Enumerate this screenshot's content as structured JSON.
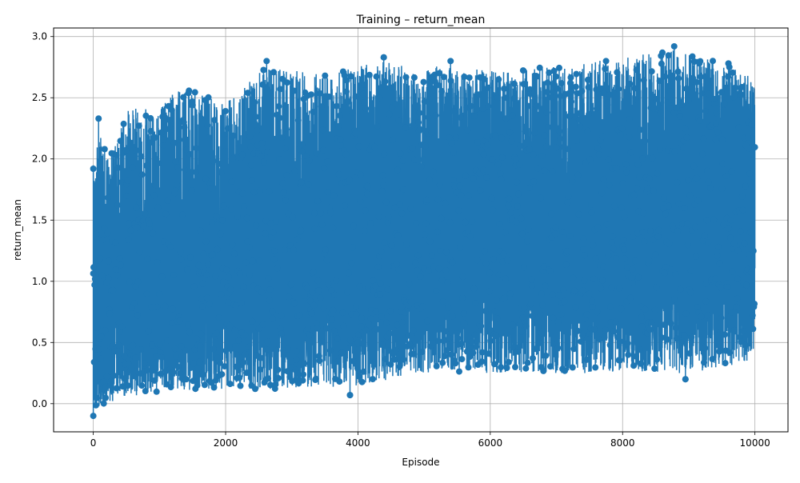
{
  "chart_data": {
    "type": "line",
    "title": "Training – return_mean",
    "xlabel": "Episode",
    "ylabel": "return_mean",
    "xlim": [
      -600,
      10500
    ],
    "ylim": [
      -0.23,
      3.07
    ],
    "xticks": [
      0,
      2000,
      4000,
      6000,
      8000,
      10000
    ],
    "yticks": [
      0.0,
      0.5,
      1.0,
      1.5,
      2.0,
      2.5,
      3.0
    ],
    "xtick_labels": [
      "0",
      "2000",
      "4000",
      "6000",
      "8000",
      "10000"
    ],
    "ytick_labels": [
      "0.0",
      "0.5",
      "1.0",
      "1.5",
      "2.0",
      "2.5",
      "3.0"
    ],
    "grid": true,
    "marker": "circle",
    "color": "#1f77b4",
    "series": [
      {
        "x_range": [
          0,
          10000
        ],
        "points": 10001,
        "upper_envelope": [
          [
            0,
            1.95
          ],
          [
            100,
            2.2
          ],
          [
            250,
            2.0
          ],
          [
            500,
            2.45
          ],
          [
            1000,
            2.4
          ],
          [
            1300,
            2.6
          ],
          [
            2000,
            2.45
          ],
          [
            2600,
            2.75
          ],
          [
            3500,
            2.7
          ],
          [
            4400,
            2.8
          ],
          [
            5500,
            2.75
          ],
          [
            6200,
            2.72
          ],
          [
            7400,
            2.78
          ],
          [
            8800,
            2.9
          ],
          [
            9600,
            2.76
          ],
          [
            10000,
            2.68
          ]
        ],
        "lower_envelope": [
          [
            0,
            -0.05
          ],
          [
            200,
            0.0
          ],
          [
            500,
            0.05
          ],
          [
            1000,
            0.1
          ],
          [
            2000,
            0.12
          ],
          [
            3000,
            0.12
          ],
          [
            4000,
            0.15
          ],
          [
            5000,
            0.25
          ],
          [
            6000,
            0.25
          ],
          [
            7000,
            0.25
          ],
          [
            8000,
            0.25
          ],
          [
            9000,
            0.25
          ],
          [
            10000,
            0.35
          ]
        ],
        "mean_trend": [
          [
            0,
            0.6
          ],
          [
            1000,
            1.0
          ],
          [
            2000,
            1.2
          ],
          [
            4000,
            1.35
          ],
          [
            6000,
            1.45
          ],
          [
            8000,
            1.5
          ],
          [
            10000,
            1.55
          ]
        ],
        "notable_points": [
          [
            0,
            -0.1
          ],
          [
            0,
            1.92
          ],
          [
            80,
            2.33
          ],
          [
            2620,
            2.8
          ],
          [
            3880,
            0.07
          ],
          [
            4390,
            2.83
          ],
          [
            5400,
            2.8
          ],
          [
            7750,
            2.8
          ],
          [
            8780,
            2.92
          ],
          [
            8950,
            0.2
          ],
          [
            9600,
            2.78
          ]
        ]
      }
    ]
  }
}
